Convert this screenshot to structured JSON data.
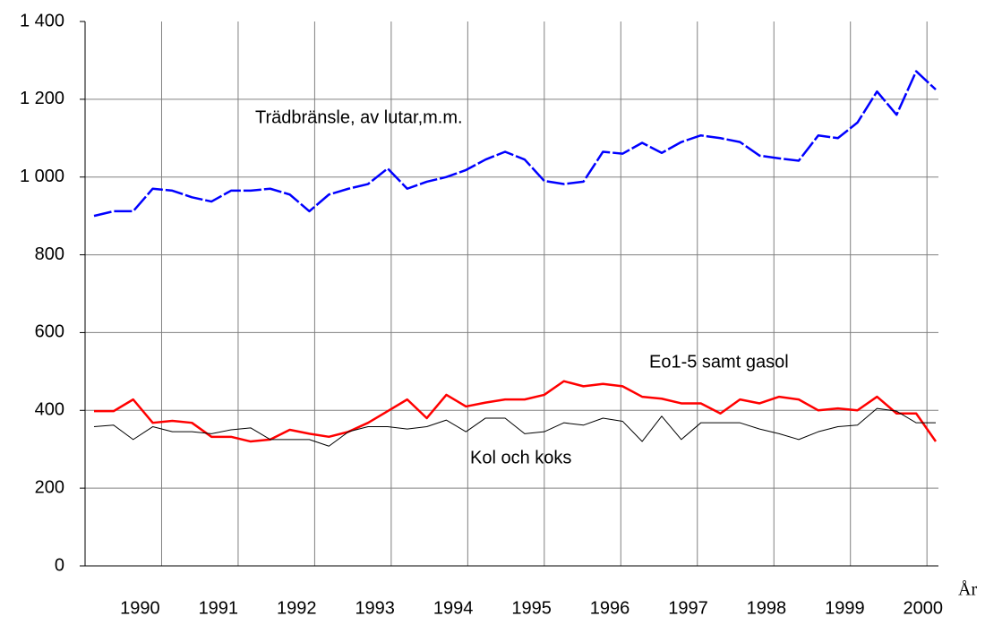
{
  "chart_data": {
    "type": "line",
    "xlabel": "År",
    "categories": [
      null,
      null,
      "1990",
      null,
      null,
      null,
      "1991",
      null,
      null,
      null,
      "1992",
      null,
      null,
      null,
      "1993",
      null,
      null,
      null,
      "1994",
      null,
      null,
      null,
      "1995",
      null,
      null,
      null,
      "1996",
      null,
      null,
      null,
      "1997",
      null,
      null,
      null,
      "1998",
      null,
      null,
      null,
      "1999",
      null,
      null,
      null,
      "2000",
      null
    ],
    "series": [
      {
        "name": "Trädbränsle, av lutar,m.m.",
        "color": "#0000ff",
        "dashed": true,
        "values": [
          900,
          912,
          912,
          970,
          965,
          948,
          937,
          965,
          965,
          970,
          955,
          912,
          955,
          970,
          982,
          1022,
          970,
          988,
          1000,
          1018,
          1045,
          1065,
          1045,
          990,
          982,
          988,
          1065,
          1060,
          1088,
          1062,
          1090,
          1107,
          1100,
          1090,
          1055,
          1048,
          1042,
          1107,
          1100,
          1140,
          1220,
          1160,
          1272,
          1225
        ]
      },
      {
        "name": "Eo1-5 samt gasol",
        "color": "#ff0000",
        "values": [
          398,
          398,
          428,
          368,
          373,
          368,
          332,
          332,
          320,
          325,
          350,
          340,
          332,
          345,
          368,
          398,
          428,
          380,
          440,
          410,
          420,
          428,
          428,
          440,
          475,
          462,
          468,
          462,
          435,
          430,
          418,
          418,
          392,
          428,
          418,
          435,
          428,
          400,
          405,
          400,
          435,
          392,
          392,
          320
        ]
      },
      {
        "name": "Kol och koks",
        "color": "#000000",
        "values": [
          358,
          362,
          325,
          358,
          345,
          345,
          340,
          350,
          355,
          325,
          325,
          325,
          308,
          345,
          358,
          358,
          352,
          358,
          375,
          345,
          380,
          380,
          340,
          345,
          368,
          362,
          380,
          372,
          320,
          385,
          325,
          368,
          368,
          368,
          352,
          340,
          325,
          345,
          358,
          362,
          405,
          398,
          368,
          368
        ]
      }
    ],
    "ylim": [
      0,
      1400
    ],
    "yticks": [
      {
        "value": 0,
        "label": "0"
      },
      200,
      400,
      600,
      800,
      {
        "value": 1000,
        "label": "1 000"
      },
      {
        "value": 1200,
        "label": "1 200"
      },
      {
        "value": 1400,
        "label": "1 400"
      }
    ],
    "grid": true
  }
}
